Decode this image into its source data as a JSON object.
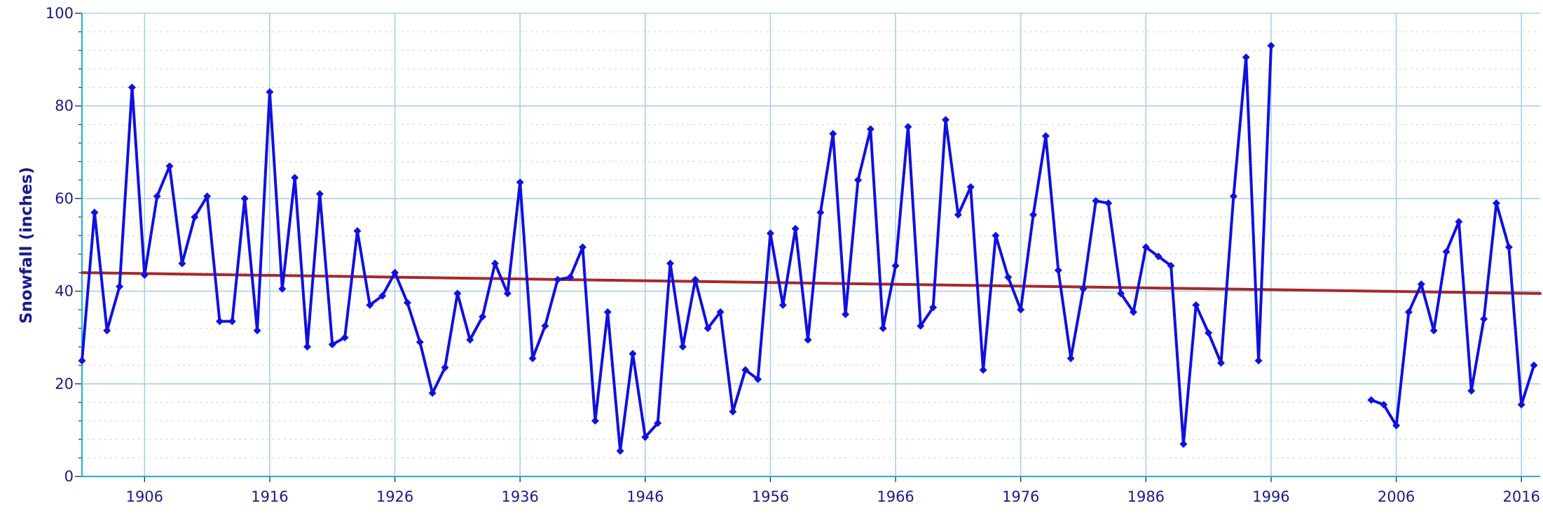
{
  "chart_data": {
    "type": "line",
    "title": "",
    "xlabel": "",
    "ylabel": "Snowfall (inches)",
    "xlim": [
      1901,
      2017.5
    ],
    "ylim": [
      0,
      100
    ],
    "xticks": [
      1906,
      1916,
      1926,
      1936,
      1946,
      1956,
      1966,
      1976,
      1986,
      1996,
      2006,
      2016
    ],
    "yticks": [
      0,
      20,
      40,
      60,
      80,
      100
    ],
    "yminor_step": 4,
    "grid": true,
    "legend": "none",
    "colors": {
      "series": "#1010e0",
      "trend": "#a52a2a",
      "grid_major": "#a7d0ea",
      "grid_minor": "#d8d8d8",
      "axis": "#1ab0d8",
      "text": "#1a1a8c"
    },
    "series": [
      {
        "values": [
          [
            1901,
            25
          ],
          [
            1902,
            57
          ],
          [
            1903,
            31.5
          ],
          [
            1904,
            41
          ],
          [
            1905,
            84
          ],
          [
            1906,
            43.5
          ],
          [
            1907,
            60.5
          ],
          [
            1908,
            67
          ],
          [
            1909,
            46
          ],
          [
            1910,
            56
          ],
          [
            1911,
            60.5
          ],
          [
            1912,
            33.5
          ],
          [
            1913,
            33.5
          ],
          [
            1914,
            60
          ],
          [
            1915,
            31.5
          ],
          [
            1916,
            83
          ],
          [
            1917,
            40.5
          ],
          [
            1918,
            64.5
          ],
          [
            1919,
            28
          ],
          [
            1920,
            61
          ],
          [
            1921,
            28.5
          ],
          [
            1922,
            30
          ],
          [
            1923,
            53
          ],
          [
            1924,
            37
          ],
          [
            1925,
            39
          ],
          [
            1926,
            44
          ],
          [
            1927,
            37.5
          ],
          [
            1928,
            29
          ],
          [
            1929,
            18
          ],
          [
            1930,
            23.5
          ],
          [
            1931,
            39.5
          ],
          [
            1932,
            29.5
          ],
          [
            1933,
            34.5
          ],
          [
            1934,
            46
          ],
          [
            1935,
            39.5
          ],
          [
            1936,
            63.5
          ],
          [
            1937,
            25.5
          ],
          [
            1938,
            32.5
          ],
          [
            1939,
            42.5
          ],
          [
            1940,
            43
          ],
          [
            1941,
            49.5
          ],
          [
            1942,
            12
          ],
          [
            1943,
            35.5
          ],
          [
            1944,
            5.5
          ],
          [
            1945,
            26.5
          ],
          [
            1946,
            8.5
          ],
          [
            1947,
            11.5
          ],
          [
            1948,
            46
          ],
          [
            1949,
            28
          ],
          [
            1950,
            42.5
          ],
          [
            1951,
            32
          ],
          [
            1952,
            35.5
          ],
          [
            1953,
            14
          ],
          [
            1954,
            23
          ],
          [
            1955,
            21
          ],
          [
            1956,
            52.5
          ],
          [
            1957,
            37
          ],
          [
            1958,
            53.5
          ],
          [
            1959,
            29.5
          ],
          [
            1960,
            57
          ],
          [
            1961,
            74
          ],
          [
            1962,
            35
          ],
          [
            1963,
            64
          ],
          [
            1964,
            75
          ],
          [
            1965,
            32
          ],
          [
            1966,
            45.5
          ],
          [
            1967,
            75.5
          ],
          [
            1968,
            32.5
          ],
          [
            1969,
            36.5
          ],
          [
            1970,
            77
          ],
          [
            1971,
            56.5
          ],
          [
            1972,
            62.5
          ],
          [
            1973,
            23
          ],
          [
            1974,
            52
          ],
          [
            1975,
            43
          ],
          [
            1976,
            36
          ],
          [
            1977,
            56.5
          ],
          [
            1978,
            73.5
          ],
          [
            1979,
            44.5
          ],
          [
            1980,
            25.5
          ],
          [
            1981,
            40.5
          ],
          [
            1982,
            59.5
          ],
          [
            1983,
            59
          ],
          [
            1984,
            39.5
          ],
          [
            1985,
            35.5
          ],
          [
            1986,
            49.5
          ],
          [
            1987,
            47.5
          ],
          [
            1988,
            45.5
          ],
          [
            1989,
            7
          ],
          [
            1990,
            37
          ],
          [
            1991,
            31
          ],
          [
            1992,
            24.5
          ],
          [
            1993,
            60.5
          ],
          [
            1994,
            90.5
          ],
          [
            1995,
            25
          ],
          [
            1996,
            93
          ]
        ]
      },
      {
        "values": [
          [
            2004,
            16.5
          ],
          [
            2005,
            15.5
          ],
          [
            2006,
            11
          ],
          [
            2007,
            35.5
          ],
          [
            2008,
            41.5
          ],
          [
            2009,
            31.5
          ],
          [
            2010,
            48.5
          ],
          [
            2011,
            55
          ],
          [
            2012,
            18.5
          ],
          [
            2013,
            34
          ],
          [
            2014,
            59
          ],
          [
            2015,
            49.5
          ],
          [
            2016,
            15.5
          ],
          [
            2017,
            24
          ]
        ]
      }
    ],
    "trend_line": {
      "x": [
        1901,
        2017.5
      ],
      "y": [
        44,
        39.5
      ]
    }
  }
}
